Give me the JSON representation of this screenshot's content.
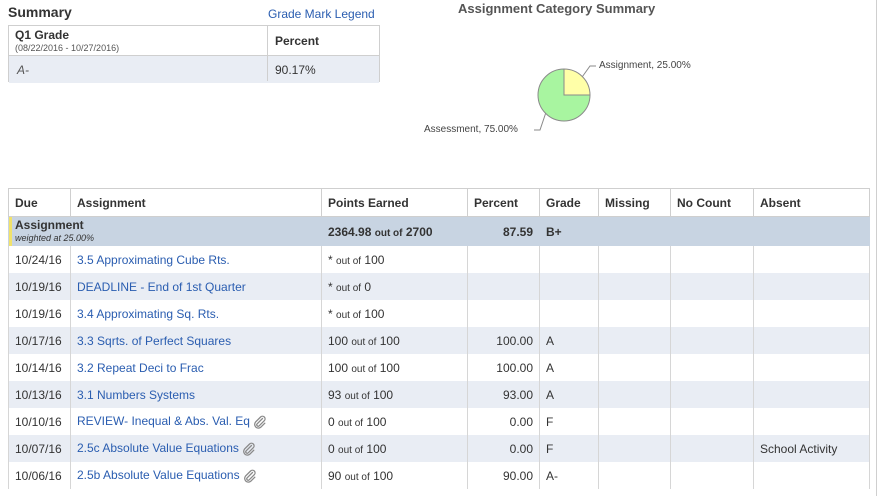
{
  "summary": {
    "title": "Summary",
    "legend_link": "Grade Mark Legend",
    "grade_label": "Q1 Grade",
    "grade_dates": "(08/22/2016 - 10/27/2016)",
    "percent_header": "Percent",
    "grade_value": "A-",
    "percent_value": "90.17%"
  },
  "category_summary": {
    "title": "Assignment Category Summary",
    "chart_data": {
      "type": "pie",
      "categories": [
        "Assignment",
        "Assessment"
      ],
      "values": [
        25.0,
        75.0
      ],
      "labels": [
        "Assignment, 25.00%",
        "Assessment, 75.00%"
      ],
      "colors": [
        "#ffffa8",
        "#a8f5a0"
      ]
    }
  },
  "table": {
    "headers": [
      "Due",
      "Assignment",
      "Points Earned",
      "Percent",
      "Grade",
      "Missing",
      "No Count",
      "Absent"
    ],
    "category": {
      "name": "Assignment",
      "weight": "weighted at 25.00%",
      "points": "2364.98",
      "out_of": "out of",
      "total": "2700",
      "percent": "87.59",
      "grade": "B+"
    },
    "rows": [
      {
        "due": "10/24/16",
        "name": "3.5 Approximating Cube Rts.",
        "earned": "*",
        "total": "100",
        "percent": "",
        "grade": "",
        "absent": "",
        "clip": false
      },
      {
        "due": "10/19/16",
        "name": "DEADLINE - End of 1st Quarter",
        "earned": "*",
        "total": "0",
        "percent": "",
        "grade": "",
        "absent": "",
        "clip": false
      },
      {
        "due": "10/19/16",
        "name": "3.4 Approximating Sq. Rts.",
        "earned": "*",
        "total": "100",
        "percent": "",
        "grade": "",
        "absent": "",
        "clip": false
      },
      {
        "due": "10/17/16",
        "name": "3.3 Sqrts. of Perfect Squares",
        "earned": "100",
        "total": "100",
        "percent": "100.00",
        "grade": "A",
        "absent": "",
        "clip": false
      },
      {
        "due": "10/14/16",
        "name": "3.2 Repeat Deci to Frac",
        "earned": "100",
        "total": "100",
        "percent": "100.00",
        "grade": "A",
        "absent": "",
        "clip": false
      },
      {
        "due": "10/13/16",
        "name": "3.1 Numbers Systems",
        "earned": "93",
        "total": "100",
        "percent": "93.00",
        "grade": "A",
        "absent": "",
        "clip": false
      },
      {
        "due": "10/10/16",
        "name": "REVIEW- Inequal & Abs. Val. Eq",
        "earned": "0",
        "total": "100",
        "percent": "0.00",
        "grade": "F",
        "absent": "",
        "clip": true
      },
      {
        "due": "10/07/16",
        "name": "2.5c Absolute Value Equations",
        "earned": "0",
        "total": "100",
        "percent": "0.00",
        "grade": "F",
        "absent": "School Activity",
        "clip": true
      },
      {
        "due": "10/06/16",
        "name": "2.5b Absolute Value Equations",
        "earned": "90",
        "total": "100",
        "percent": "90.00",
        "grade": "A-",
        "absent": "",
        "clip": true
      }
    ]
  },
  "colors": {
    "link": "#2a5db0",
    "category_row": "#c8d4e2",
    "alt_row": "#e9edf4",
    "category_marker": "#f1e26b"
  },
  "icons": {
    "attachment": "paperclip-icon"
  }
}
